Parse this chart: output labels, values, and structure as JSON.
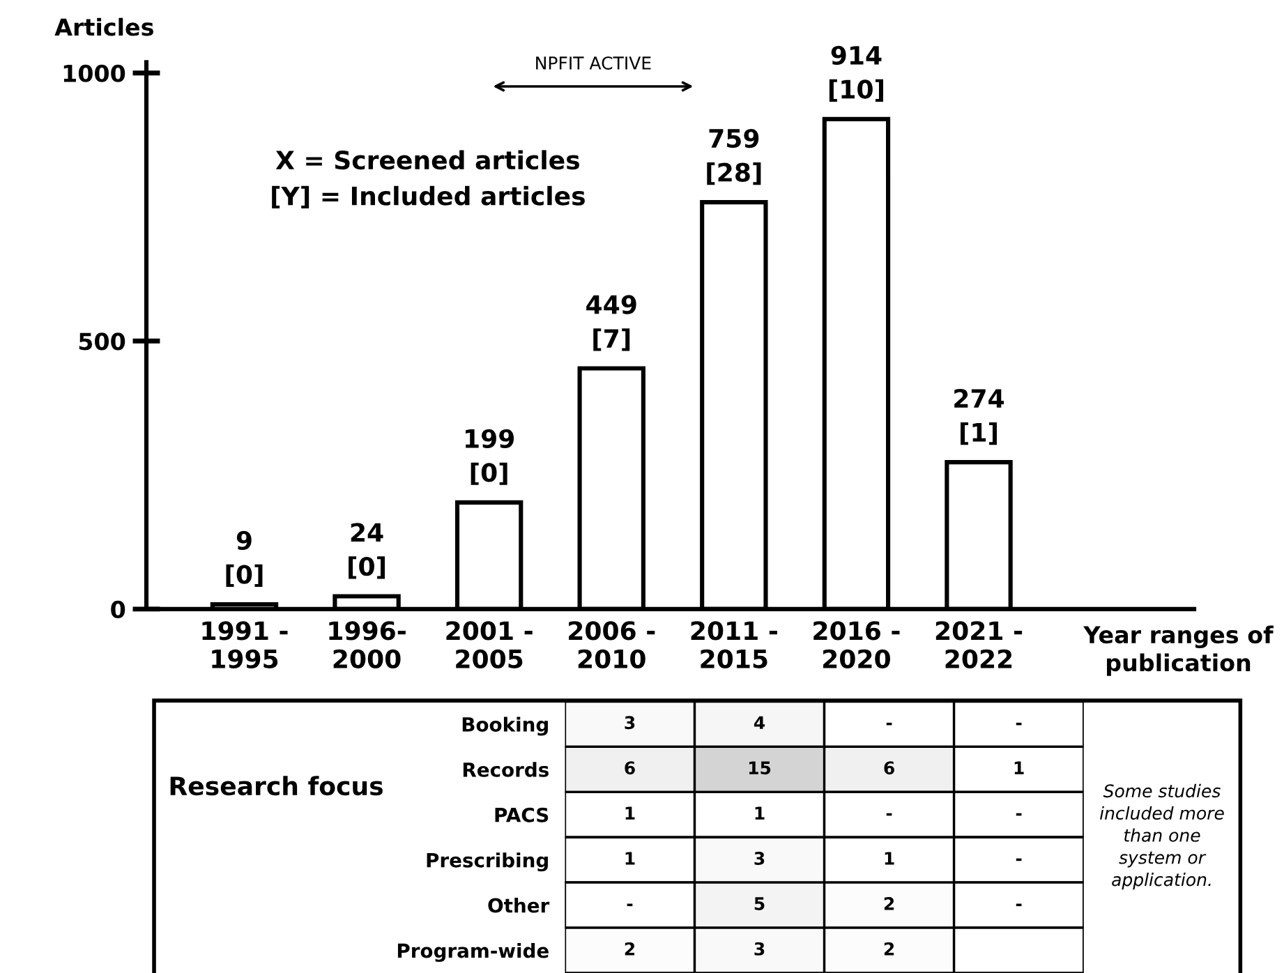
{
  "chart_data": [
    {
      "type": "bar",
      "ylabel": "Articles",
      "xlabel": "Year ranges of\npublication",
      "categories": [
        "1991 -\n1995",
        "1996-\n2000",
        "2001 -\n2005",
        "2006 -\n2010",
        "2011 -\n2015",
        "2016 -\n2020",
        "2021 -\n2022"
      ],
      "values": [
        9,
        24,
        199,
        449,
        759,
        914,
        274
      ],
      "value_labels": [
        "9\n[0]",
        "24\n[0]",
        "199\n[0]",
        "449\n[7]",
        "759\n[28]",
        "914\n[10]",
        "274\n[1]"
      ],
      "color": "#ffffff",
      "ylim": [
        0,
        1020
      ],
      "yticks": [
        0,
        500,
        1000
      ],
      "grid": false,
      "legend": false,
      "annotations": [
        "NPFIT ACTIVE",
        "X = Screened articles\n[Y] = Included articles"
      ]
    },
    {
      "type": "heatmap",
      "ylabel": "Research focus",
      "categories": [
        null,
        null,
        null,
        null
      ],
      "y_categories": [
        "Booking",
        "Records",
        "PACS",
        "Prescribing",
        "Other",
        "Program-wide"
      ],
      "cells": [
        [
          3,
          4,
          null,
          null
        ],
        [
          6,
          15,
          6,
          1
        ],
        [
          1,
          1,
          null,
          null
        ],
        [
          1,
          3,
          1,
          null
        ],
        [
          null,
          5,
          2,
          null
        ],
        [
          2,
          3,
          2,
          null
        ]
      ],
      "cell_labels": [
        [
          "3",
          "4",
          "-",
          "-"
        ],
        [
          "6",
          "15",
          "6",
          "1"
        ],
        [
          "1",
          "1",
          "-",
          "-"
        ],
        [
          "1",
          "3",
          "1",
          "-"
        ],
        [
          "-",
          "5",
          "2",
          "-"
        ],
        [
          "2",
          "3",
          "2",
          null
        ]
      ],
      "annotations": [
        "Some studies\nincluded more\nthan one\nsystem or\napplication."
      ]
    }
  ]
}
